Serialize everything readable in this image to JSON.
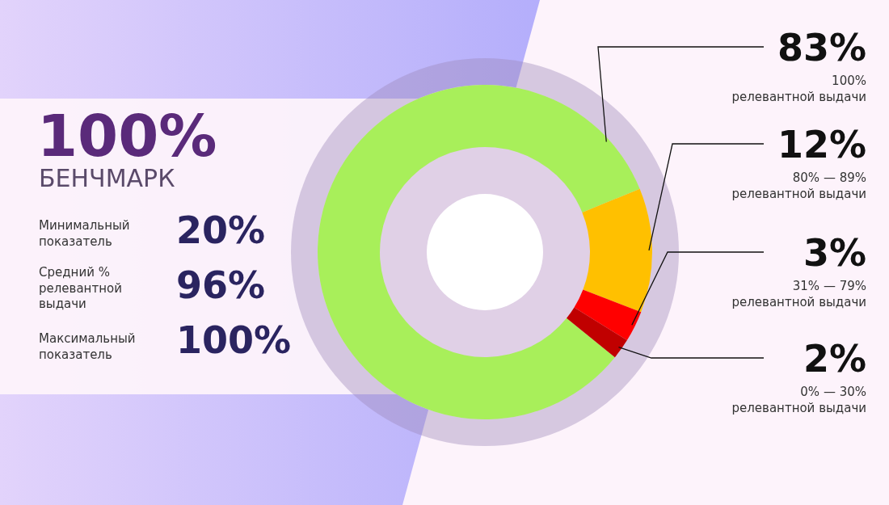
{
  "chart_data": {
    "type": "donut",
    "categories": [
      "100% релевантной выдачи",
      "80% — 89% релевантной выдачи",
      "31% — 79% релевантной выдачи",
      "0% — 30% релевантной выдачи"
    ],
    "values": [
      83,
      12,
      3,
      2
    ],
    "colors": [
      "#a8ef5a",
      "#ffc000",
      "#ff0000",
      "#c00000"
    ],
    "value_labels": [
      "83%",
      "12%",
      "3%",
      "2%"
    ],
    "annotations": [
      "100%",
      "БЕНЧМАРК",
      "Минимальный показатель",
      "20%",
      "Средний % релевантной выдачи",
      "96%",
      "Максимальный показатель",
      "100%"
    ]
  }
}
